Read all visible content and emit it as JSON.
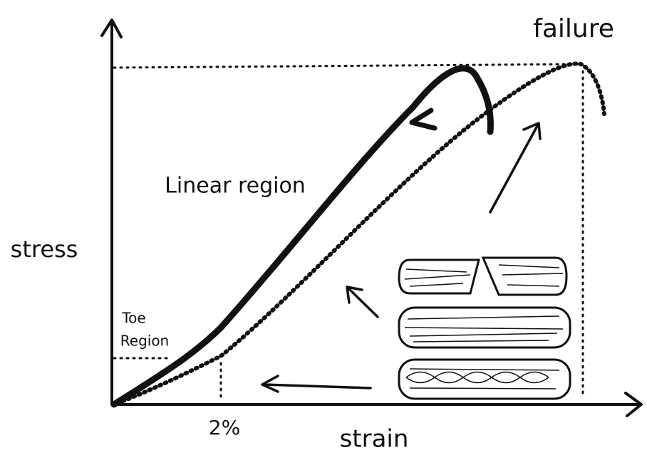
{
  "labels": {
    "failure": "failure",
    "linear_region": "Linear region",
    "stress": "stress",
    "toe_region": [
      "Toe",
      "Region"
    ],
    "strain_2pct": "2%",
    "strain": "strain"
  }
}
